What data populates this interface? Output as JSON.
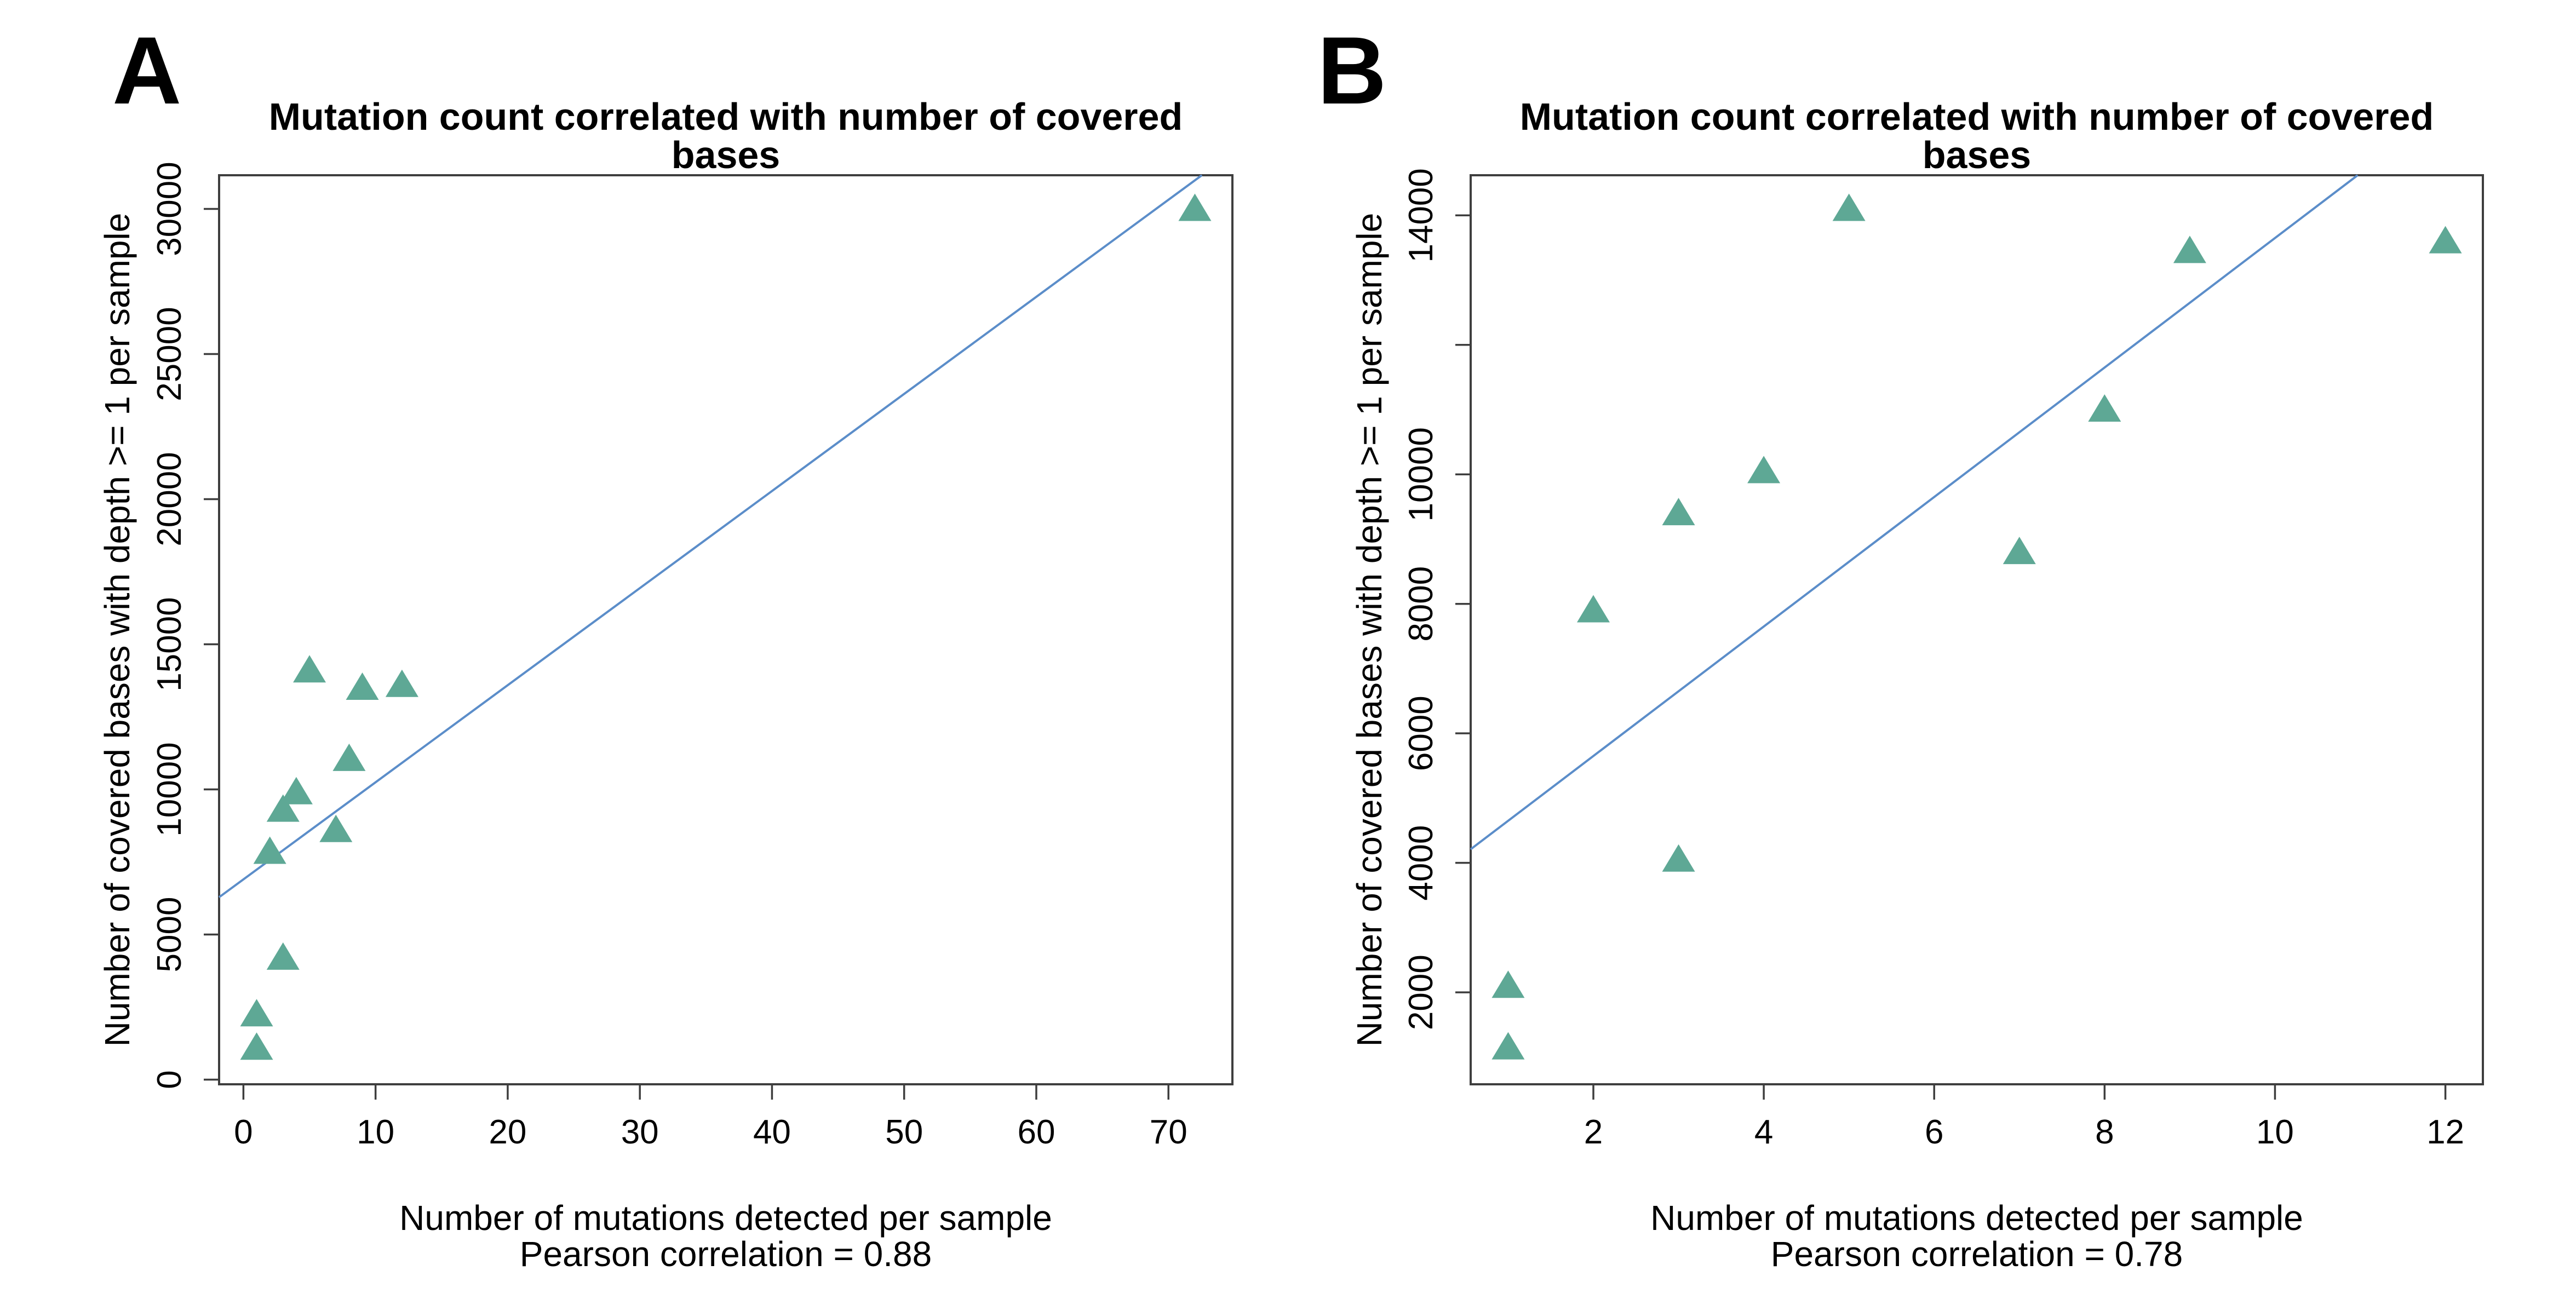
{
  "figure": {
    "background_color": "#ffffff",
    "axis_color": "#3e3e3e",
    "text_color": "#000000"
  },
  "chart_data": [
    {
      "panel_label": "A",
      "type": "scatter",
      "title": "Mutation count correlated with number of covered bases",
      "xlabel": "Number of mutations detected per sample",
      "xlabel_line2": "Pearson correlation = 0.88",
      "ylabel": "Number of covered bases with depth >= 1 per sample",
      "pearson_correlation": 0.88,
      "marker": "triangle-up",
      "marker_color": "#5ea895",
      "line_color": "#5b8dc9",
      "grid": false,
      "legend": null,
      "xlim": [
        -1.84,
        74.84
      ],
      "ylim": [
        -160,
        31160
      ],
      "x_ticks": [
        0,
        10,
        20,
        30,
        40,
        50,
        60,
        70
      ],
      "x_tick_labels": [
        "0",
        "10",
        "20",
        "30",
        "40",
        "50",
        "60",
        "70"
      ],
      "y_ticks": [
        0,
        5000,
        10000,
        15000,
        20000,
        25000,
        30000
      ],
      "y_tick_labels": [
        "0",
        "5000",
        "10000",
        "15000",
        "20000",
        "25000",
        "30000"
      ],
      "points": [
        [
          1,
          1100
        ],
        [
          1,
          2250
        ],
        [
          2,
          7850
        ],
        [
          3,
          4200
        ],
        [
          3,
          9300
        ],
        [
          4,
          9900
        ],
        [
          5,
          14100
        ],
        [
          7,
          8600
        ],
        [
          8,
          11050
        ],
        [
          9,
          13500
        ],
        [
          12,
          13600
        ],
        [
          72,
          30000
        ]
      ],
      "regression_line": {
        "slope": 334.5,
        "intercept": 6900
      }
    },
    {
      "panel_label": "B",
      "type": "scatter",
      "title": "Mutation count correlated with number of covered bases",
      "xlabel": "Number of mutations detected per sample",
      "xlabel_line2": "Pearson correlation = 0.78",
      "ylabel": "Number of covered bases with depth >= 1 per sample",
      "pearson_correlation": 0.78,
      "marker": "triangle-up",
      "marker_color": "#5ea895",
      "line_color": "#5b8dc9",
      "grid": false,
      "legend": null,
      "xlim": [
        0.56,
        12.44
      ],
      "ylim": [
        580,
        14620
      ],
      "x_ticks": [
        2,
        4,
        6,
        8,
        10,
        12
      ],
      "x_tick_labels": [
        "2",
        "4",
        "6",
        "8",
        "10",
        "12"
      ],
      "y_ticks": [
        2000,
        4000,
        6000,
        8000,
        10000,
        12000,
        14000
      ],
      "y_tick_labels": [
        "2000",
        "4000",
        "6000",
        "8000",
        "10000",
        "",
        "14000"
      ],
      "points": [
        [
          1,
          1150
        ],
        [
          1,
          2100
        ],
        [
          2,
          7900
        ],
        [
          3,
          4050
        ],
        [
          3,
          9400
        ],
        [
          4,
          10050
        ],
        [
          5,
          14100
        ],
        [
          7,
          8800
        ],
        [
          8,
          11000
        ],
        [
          9,
          13450
        ],
        [
          12,
          13600
        ]
      ],
      "regression_line": {
        "slope": 1000,
        "intercept": 3650
      }
    }
  ]
}
